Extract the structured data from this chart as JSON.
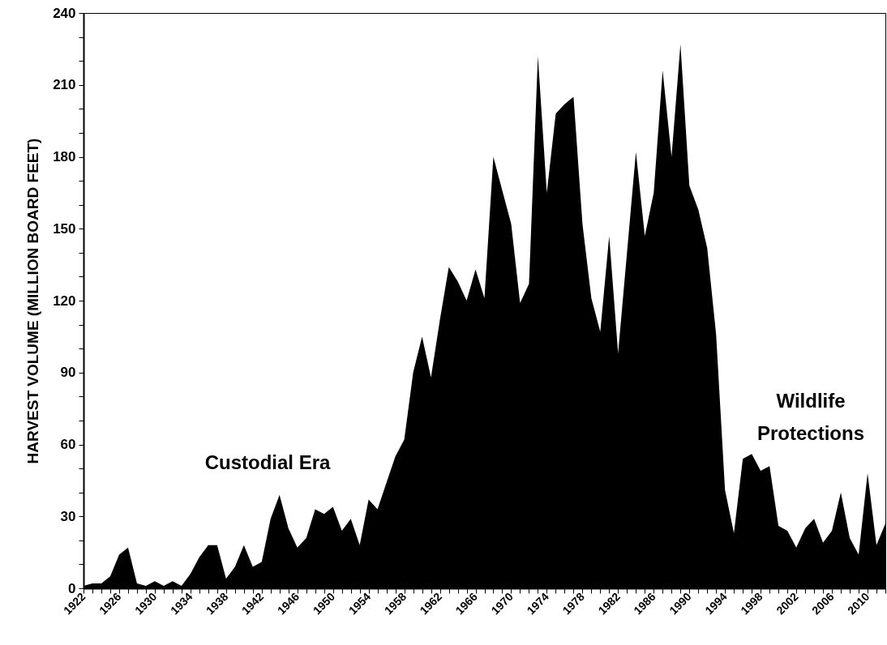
{
  "chart_data": {
    "type": "area",
    "ylabel": "HARVEST VOLUME (MILLION BOARD FEET)",
    "categories": [
      "1922",
      null,
      null,
      null,
      "1926",
      null,
      null,
      null,
      "1930",
      null,
      null,
      null,
      "1934",
      null,
      null,
      null,
      "1938",
      null,
      null,
      null,
      "1942",
      null,
      null,
      null,
      "1946",
      null,
      null,
      null,
      "1950",
      null,
      null,
      null,
      "1954",
      null,
      null,
      null,
      "1958",
      null,
      null,
      null,
      "1962",
      null,
      null,
      null,
      "1966",
      null,
      null,
      null,
      "1970",
      null,
      null,
      null,
      "1974",
      null,
      null,
      null,
      "1978",
      null,
      null,
      null,
      "1982",
      null,
      null,
      null,
      "1986",
      null,
      null,
      null,
      "1990",
      null,
      null,
      null,
      "1994",
      null,
      null,
      null,
      "1998",
      null,
      null,
      null,
      "2002",
      null,
      null,
      null,
      "2006",
      null,
      null,
      null,
      "2010",
      null,
      null
    ],
    "series": [
      {
        "color": "#000000",
        "values": [
          1,
          2,
          2,
          5,
          14,
          17,
          2,
          1,
          3,
          1,
          3,
          1,
          6,
          13,
          18,
          18,
          4,
          9,
          18,
          9,
          11,
          29,
          39,
          25,
          17,
          21,
          33,
          31,
          34,
          24,
          29,
          18,
          37,
          33,
          44,
          55,
          62,
          90,
          105,
          88,
          112,
          134,
          128,
          120,
          133,
          121,
          180,
          166,
          152,
          119,
          127,
          222,
          165,
          198,
          202,
          205,
          152,
          121,
          107,
          147,
          98,
          140,
          182,
          147,
          165,
          216,
          180,
          227,
          168,
          158,
          142,
          106,
          41,
          23,
          54,
          56,
          49,
          51,
          26,
          24,
          17,
          25,
          29,
          19,
          24,
          40,
          21,
          14,
          48,
          18,
          27
        ]
      }
    ],
    "ylim": [
      0,
      240
    ],
    "yticks": [
      0,
      {
        "value": 10,
        "label": null
      },
      {
        "value": 20,
        "label": null
      },
      30,
      {
        "value": 40,
        "label": null
      },
      {
        "value": 50,
        "label": null
      },
      60,
      {
        "value": 70,
        "label": null
      },
      {
        "value": 80,
        "label": null
      },
      90,
      {
        "value": 100,
        "label": null
      },
      {
        "value": 110,
        "label": null
      },
      120,
      {
        "value": 130,
        "label": null
      },
      {
        "value": 140,
        "label": null
      },
      150,
      {
        "value": 160,
        "label": null
      },
      {
        "value": 170,
        "label": null
      },
      180,
      {
        "value": 190,
        "label": null
      },
      {
        "value": 200,
        "label": null
      },
      210,
      {
        "value": 220,
        "label": null
      },
      {
        "value": 230,
        "label": null
      },
      240
    ],
    "annotations": [
      "Custodial Era",
      "Wildlife\nProtections"
    ]
  }
}
